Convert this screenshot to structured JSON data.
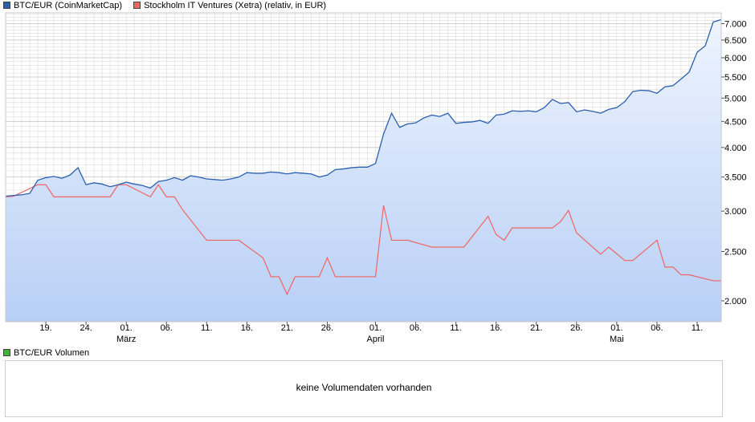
{
  "legend": {
    "btc_label": "BTC/EUR (CoinMarketCap)",
    "stock_label": "Stockholm IT Ventures (Xetra) (relativ, in EUR)",
    "volume_label": "BTC/EUR Volumen"
  },
  "colors": {
    "btc": "#2c5fb0",
    "stock": "#f06464",
    "volume": "#3cb43c",
    "fill_top": "#eef4ff",
    "fill_bottom": "#b8cff5",
    "grid": "#dcdcdc"
  },
  "volume": {
    "empty_message": "keine Volumendaten vorhanden"
  },
  "chart_data": {
    "type": "line",
    "y_scale": "log",
    "ylim": [
      1.82,
      7.35
    ],
    "y_ticks": [
      {
        "value": 2.0,
        "label": "2.000"
      },
      {
        "value": 2.5,
        "label": "2.500"
      },
      {
        "value": 3.0,
        "label": "3.000"
      },
      {
        "value": 3.5,
        "label": "3.500"
      },
      {
        "value": 4.0,
        "label": "4.000"
      },
      {
        "value": 4.5,
        "label": "4.500"
      },
      {
        "value": 5.0,
        "label": "5.000"
      },
      {
        "value": 5.5,
        "label": "5.500"
      },
      {
        "value": 6.0,
        "label": "6.000"
      },
      {
        "value": 6.5,
        "label": "6.500"
      },
      {
        "value": 7.0,
        "label": "7.000"
      }
    ],
    "x_range": [
      "2019-02-14",
      "2019-05-14"
    ],
    "x_ticks": [
      {
        "date": "2019-02-19",
        "label": "19."
      },
      {
        "date": "2019-02-24",
        "label": "24."
      },
      {
        "date": "2019-03-01",
        "label": "01.",
        "month": "März"
      },
      {
        "date": "2019-03-06",
        "label": "06."
      },
      {
        "date": "2019-03-11",
        "label": "11."
      },
      {
        "date": "2019-03-16",
        "label": "16."
      },
      {
        "date": "2019-03-21",
        "label": "21."
      },
      {
        "date": "2019-03-26",
        "label": "26."
      },
      {
        "date": "2019-04-01",
        "label": "01.",
        "month": "April"
      },
      {
        "date": "2019-04-06",
        "label": "06."
      },
      {
        "date": "2019-04-11",
        "label": "11."
      },
      {
        "date": "2019-04-16",
        "label": "16."
      },
      {
        "date": "2019-04-21",
        "label": "21."
      },
      {
        "date": "2019-04-26",
        "label": "26."
      },
      {
        "date": "2019-05-01",
        "label": "01.",
        "month": "Mai"
      },
      {
        "date": "2019-05-06",
        "label": "06."
      },
      {
        "date": "2019-05-11",
        "label": "11."
      }
    ],
    "series": [
      {
        "name": "BTC/EUR (CoinMarketCap)",
        "x": [
          "2019-02-14",
          "2019-02-15",
          "2019-02-16",
          "2019-02-17",
          "2019-02-18",
          "2019-02-19",
          "2019-02-20",
          "2019-02-21",
          "2019-02-22",
          "2019-02-23",
          "2019-02-24",
          "2019-02-25",
          "2019-02-26",
          "2019-02-27",
          "2019-02-28",
          "2019-03-01",
          "2019-03-02",
          "2019-03-03",
          "2019-03-04",
          "2019-03-05",
          "2019-03-06",
          "2019-03-07",
          "2019-03-08",
          "2019-03-09",
          "2019-03-10",
          "2019-03-11",
          "2019-03-12",
          "2019-03-13",
          "2019-03-14",
          "2019-03-15",
          "2019-03-16",
          "2019-03-17",
          "2019-03-18",
          "2019-03-19",
          "2019-03-20",
          "2019-03-21",
          "2019-03-22",
          "2019-03-23",
          "2019-03-24",
          "2019-03-25",
          "2019-03-26",
          "2019-03-27",
          "2019-03-28",
          "2019-03-29",
          "2019-03-30",
          "2019-03-31",
          "2019-04-01",
          "2019-04-02",
          "2019-04-03",
          "2019-04-04",
          "2019-04-05",
          "2019-04-06",
          "2019-04-07",
          "2019-04-08",
          "2019-04-09",
          "2019-04-10",
          "2019-04-11",
          "2019-04-12",
          "2019-04-13",
          "2019-04-14",
          "2019-04-15",
          "2019-04-16",
          "2019-04-17",
          "2019-04-18",
          "2019-04-19",
          "2019-04-20",
          "2019-04-21",
          "2019-04-22",
          "2019-04-23",
          "2019-04-24",
          "2019-04-25",
          "2019-04-26",
          "2019-04-27",
          "2019-04-28",
          "2019-04-29",
          "2019-04-30",
          "2019-05-01",
          "2019-05-02",
          "2019-05-03",
          "2019-05-04",
          "2019-05-05",
          "2019-05-06",
          "2019-05-07",
          "2019-05-08",
          "2019-05-09",
          "2019-05-10",
          "2019-05-11",
          "2019-05-12",
          "2019-05-13",
          "2019-05-14"
        ],
        "y": [
          3.21,
          3.22,
          3.23,
          3.25,
          3.45,
          3.49,
          3.51,
          3.48,
          3.53,
          3.65,
          3.38,
          3.41,
          3.39,
          3.35,
          3.38,
          3.42,
          3.39,
          3.37,
          3.33,
          3.43,
          3.45,
          3.49,
          3.45,
          3.52,
          3.5,
          3.47,
          3.46,
          3.45,
          3.47,
          3.5,
          3.57,
          3.56,
          3.56,
          3.58,
          3.57,
          3.55,
          3.57,
          3.56,
          3.55,
          3.5,
          3.53,
          3.62,
          3.63,
          3.65,
          3.66,
          3.66,
          3.72,
          4.25,
          4.67,
          4.38,
          4.45,
          4.47,
          4.57,
          4.63,
          4.6,
          4.67,
          4.46,
          4.48,
          4.49,
          4.52,
          4.46,
          4.63,
          4.65,
          4.72,
          4.71,
          4.72,
          4.7,
          4.79,
          4.97,
          4.88,
          4.9,
          4.7,
          4.74,
          4.71,
          4.67,
          4.75,
          4.79,
          4.92,
          5.15,
          5.18,
          5.17,
          5.11,
          5.26,
          5.29,
          5.45,
          5.62,
          6.15,
          6.33,
          7.05,
          7.13
        ]
      },
      {
        "name": "Stockholm IT Ventures (Xetra) (relativ, in EUR)",
        "x": [
          "2019-02-14",
          "2019-02-15",
          "2019-02-18",
          "2019-02-19",
          "2019-02-20",
          "2019-02-21",
          "2019-02-22",
          "2019-02-25",
          "2019-02-26",
          "2019-02-27",
          "2019-02-28",
          "2019-03-01",
          "2019-03-04",
          "2019-03-05",
          "2019-03-06",
          "2019-03-07",
          "2019-03-08",
          "2019-03-11",
          "2019-03-12",
          "2019-03-13",
          "2019-03-14",
          "2019-03-15",
          "2019-03-18",
          "2019-03-19",
          "2019-03-20",
          "2019-03-21",
          "2019-03-22",
          "2019-03-25",
          "2019-03-26",
          "2019-03-27",
          "2019-03-28",
          "2019-03-29",
          "2019-04-01",
          "2019-04-02",
          "2019-04-03",
          "2019-04-04",
          "2019-04-05",
          "2019-04-08",
          "2019-04-09",
          "2019-04-10",
          "2019-04-11",
          "2019-04-12",
          "2019-04-15",
          "2019-04-16",
          "2019-04-17",
          "2019-04-18",
          "2019-04-23",
          "2019-04-24",
          "2019-04-25",
          "2019-04-26",
          "2019-04-29",
          "2019-04-30",
          "2019-05-02",
          "2019-05-03",
          "2019-05-06",
          "2019-05-07",
          "2019-05-08",
          "2019-05-09",
          "2019-05-10",
          "2019-05-13",
          "2019-05-14"
        ],
        "y": [
          3.2,
          3.21,
          3.38,
          3.38,
          3.2,
          3.2,
          3.2,
          3.2,
          3.2,
          3.2,
          3.38,
          3.38,
          3.2,
          3.38,
          3.2,
          3.2,
          3.02,
          2.63,
          2.63,
          2.63,
          2.63,
          2.63,
          2.43,
          2.23,
          2.23,
          2.06,
          2.23,
          2.23,
          2.43,
          2.23,
          2.23,
          2.23,
          2.23,
          3.08,
          2.63,
          2.63,
          2.63,
          2.55,
          2.55,
          2.55,
          2.55,
          2.55,
          2.93,
          2.7,
          2.63,
          2.78,
          2.78,
          2.86,
          3.01,
          2.72,
          2.47,
          2.55,
          2.4,
          2.4,
          2.63,
          2.33,
          2.33,
          2.25,
          2.25,
          2.19,
          2.19
        ]
      }
    ]
  }
}
